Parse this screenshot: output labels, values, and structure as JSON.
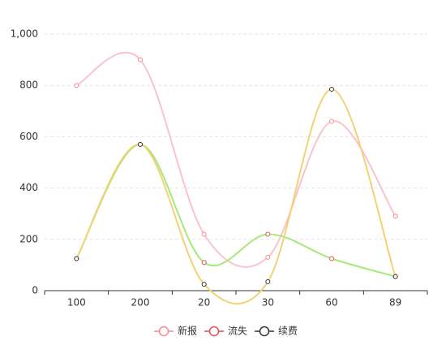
{
  "chart_data": {
    "type": "line",
    "smooth": true,
    "categories": [
      "100",
      "200",
      "20",
      "30",
      "60",
      "89"
    ],
    "series": [
      {
        "name": "新报",
        "color": "#f9c4cc",
        "marker_color": "#f28b8b",
        "values": [
          800,
          900,
          220,
          130,
          660,
          290
        ]
      },
      {
        "name": "流失",
        "color": "#a6e87c",
        "marker_color": "#d9534f",
        "values": [
          125,
          570,
          110,
          220,
          125,
          55
        ]
      },
      {
        "name": "续费",
        "color": "#f2d272",
        "marker_color": "#333333",
        "values": [
          125,
          570,
          25,
          35,
          785,
          55
        ]
      }
    ],
    "ylim": [
      0,
      1000
    ],
    "yticks": [
      0,
      200,
      400,
      600,
      800,
      {
        "value": 1000,
        "label": "1,000"
      }
    ],
    "grid": true
  }
}
